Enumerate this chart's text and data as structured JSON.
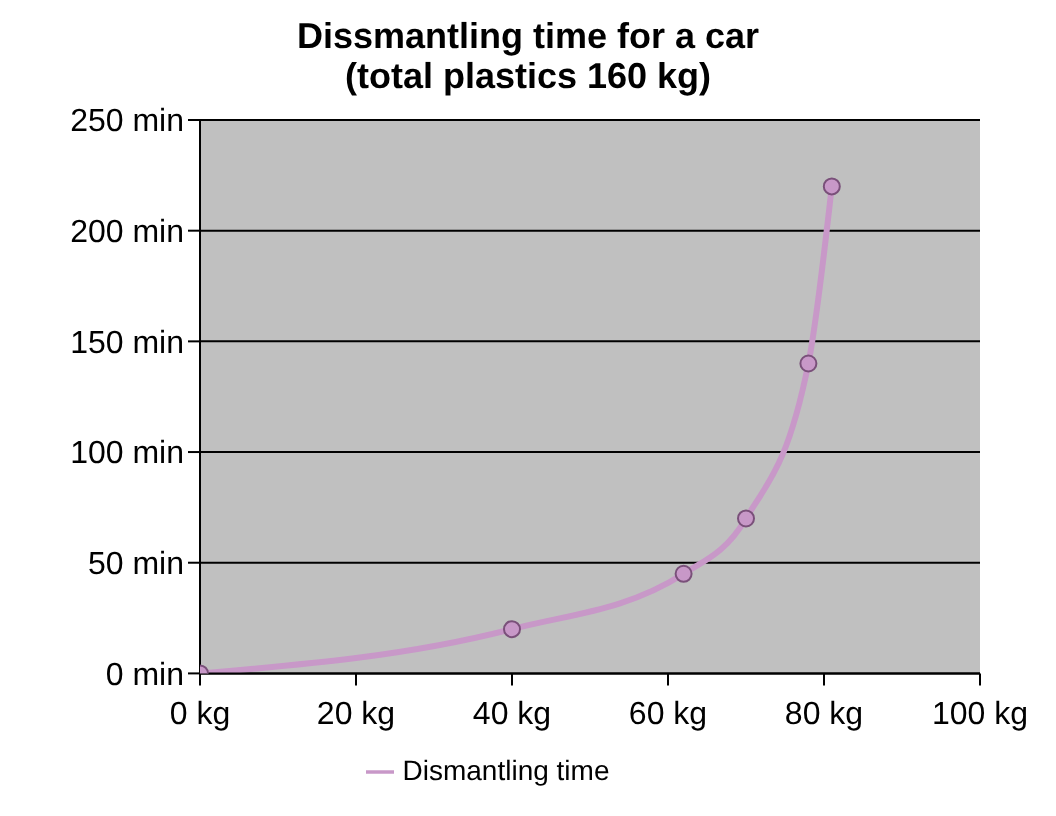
{
  "chart_data": {
    "type": "line",
    "title": "Dissmantling time for a car\n(total plastics 160 kg)",
    "x": [
      0,
      40,
      62,
      70,
      78,
      81
    ],
    "series": [
      {
        "name": "Dismantling time",
        "color": "#c898c8",
        "values": [
          0,
          20,
          45,
          70,
          140,
          220
        ]
      }
    ],
    "xlim": [
      0,
      100
    ],
    "xticks": [
      {
        "value": 0,
        "label": "0 kg"
      },
      {
        "value": 20,
        "label": "20 kg"
      },
      {
        "value": 40,
        "label": "40 kg"
      },
      {
        "value": 60,
        "label": "60 kg"
      },
      {
        "value": 80,
        "label": "80 kg"
      },
      {
        "value": 100,
        "label": "100 kg"
      }
    ],
    "ylim": [
      0,
      250
    ],
    "yticks": [
      {
        "value": 0,
        "label": "0 min"
      },
      {
        "value": 50,
        "label": "50 min"
      },
      {
        "value": 100,
        "label": "100 min"
      },
      {
        "value": 150,
        "label": "150 min"
      },
      {
        "value": 200,
        "label": "200 min"
      },
      {
        "value": 250,
        "label": "250 min"
      }
    ],
    "grid": "y",
    "legend": "bottom",
    "marker": "circle",
    "line_style": "solid"
  }
}
